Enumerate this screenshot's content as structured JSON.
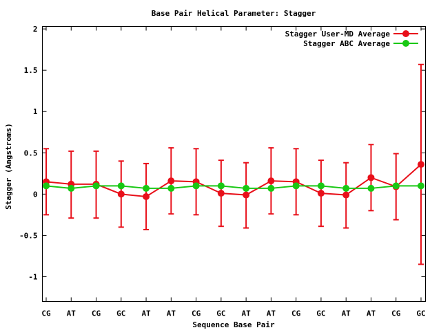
{
  "chart_data": {
    "type": "line",
    "title": "Base Pair Helical Parameter: Stagger",
    "xlabel": "Sequence Base Pair",
    "ylabel": "Stagger (Angstroms)",
    "categories": [
      "CG",
      "AT",
      "CG",
      "GC",
      "AT",
      "AT",
      "CG",
      "GC",
      "AT",
      "AT",
      "CG",
      "GC",
      "AT",
      "AT",
      "CG",
      "GC"
    ],
    "ylim": [
      -1.3,
      2.03
    ],
    "yticks": [
      2,
      1.5,
      1,
      0.5,
      0,
      -0.5,
      -1
    ],
    "ytick_labels": [
      "2",
      "1.5",
      "1",
      "0.5",
      "0",
      "-0.5",
      "-1"
    ],
    "grid": false,
    "legend_position": "top-right",
    "series": [
      {
        "name": "Stagger User-MD Average",
        "color": "#e8101a",
        "values": [
          0.15,
          0.12,
          0.12,
          0.0,
          -0.03,
          0.16,
          0.15,
          0.01,
          -0.01,
          0.16,
          0.15,
          0.01,
          -0.01,
          0.2,
          0.09,
          0.36
        ],
        "error_low": [
          -0.25,
          -0.29,
          -0.29,
          -0.4,
          -0.43,
          -0.24,
          -0.25,
          -0.39,
          -0.41,
          -0.24,
          -0.25,
          -0.39,
          -0.41,
          -0.2,
          -0.31,
          -0.85
        ],
        "error_high": [
          0.55,
          0.52,
          0.52,
          0.4,
          0.37,
          0.56,
          0.55,
          0.41,
          0.38,
          0.56,
          0.55,
          0.41,
          0.38,
          0.6,
          0.49,
          1.57
        ]
      },
      {
        "name": "Stagger ABC Average",
        "color": "#19c814",
        "values": [
          0.1,
          0.07,
          0.1,
          0.1,
          0.07,
          0.07,
          0.1,
          0.1,
          0.07,
          0.07,
          0.1,
          0.1,
          0.07,
          0.07,
          0.1,
          0.1
        ]
      }
    ]
  }
}
